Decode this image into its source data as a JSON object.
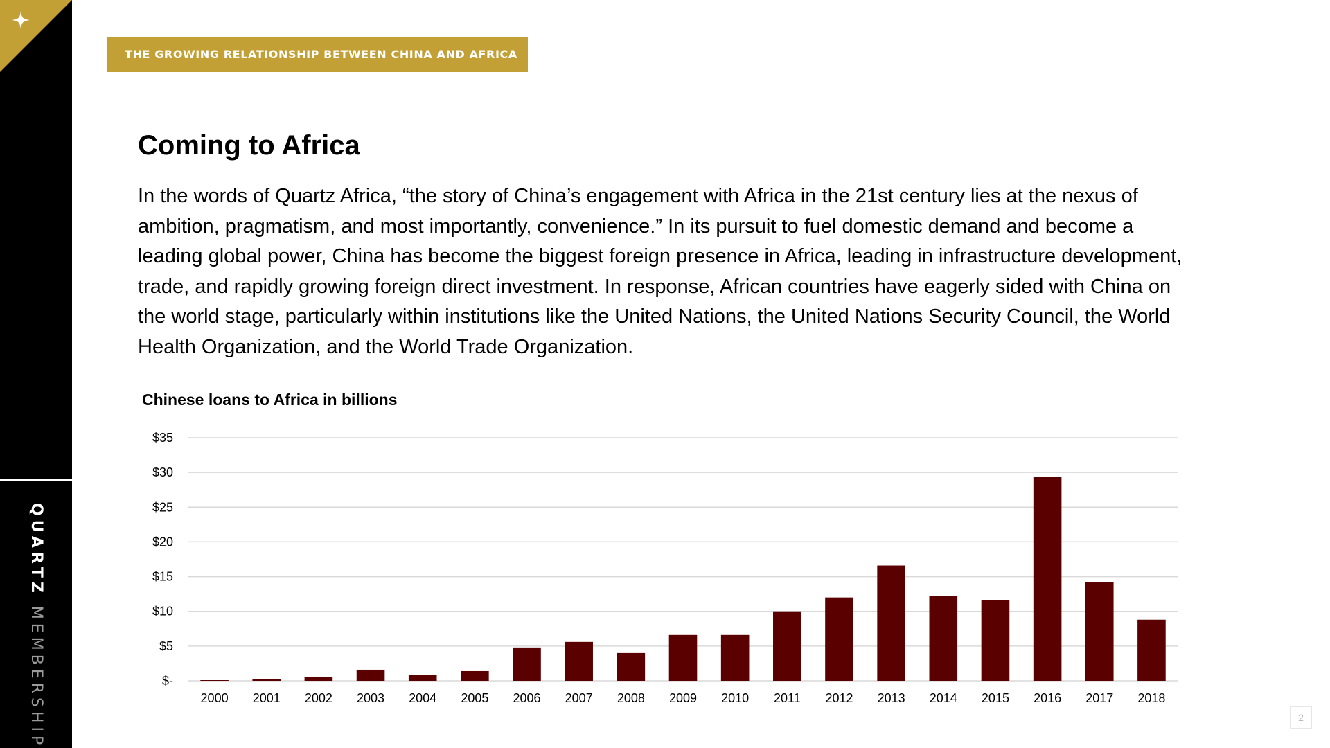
{
  "header": {
    "badge_text": "THE GROWING RELATIONSHIP BETWEEN CHINA AND AFRICA"
  },
  "sidebar": {
    "brand_bold": "QUARTZ",
    "brand_light": "MEMBERSHIP",
    "corner_icon": "sparkle-icon",
    "accent_color": "#c2a035"
  },
  "content": {
    "title": "Coming to Africa",
    "body": "In the words of Quartz Africa, “the story of China’s engagement with Africa in the 21st century lies at the nexus of ambition, pragmatism, and most importantly, convenience.” In its pursuit to fuel domestic demand and become a leading global power, China has become the biggest foreign presence in Africa, leading in infrastructure development, trade, and rapidly growing foreign direct investment. In response, African countries have eagerly sided with China on the world stage, particularly within institutions like the United Nations, the United Nations Security Council, the World Health Organization, and the World Trade Organization."
  },
  "page_number": "2",
  "chart_data": {
    "type": "bar",
    "title": "Chinese loans to Africa in billions",
    "xlabel": "",
    "ylabel": "",
    "categories": [
      "2000",
      "2001",
      "2002",
      "2003",
      "2004",
      "2005",
      "2006",
      "2007",
      "2008",
      "2009",
      "2010",
      "2011",
      "2012",
      "2013",
      "2014",
      "2015",
      "2016",
      "2017",
      "2018"
    ],
    "values": [
      0.1,
      0.2,
      0.6,
      1.6,
      0.8,
      1.4,
      4.8,
      5.6,
      4.0,
      6.6,
      6.6,
      10.0,
      12.0,
      16.6,
      12.2,
      11.6,
      29.4,
      14.2,
      8.8
    ],
    "ylim": [
      0,
      35
    ],
    "yticks": [
      0,
      5,
      10,
      15,
      20,
      25,
      30,
      35
    ],
    "ytick_labels": [
      "$-",
      "$5",
      "$10",
      "$15",
      "$20",
      "$25",
      "$30",
      "$35"
    ],
    "bar_color": "#5a0000",
    "grid": true,
    "legend": "none"
  }
}
